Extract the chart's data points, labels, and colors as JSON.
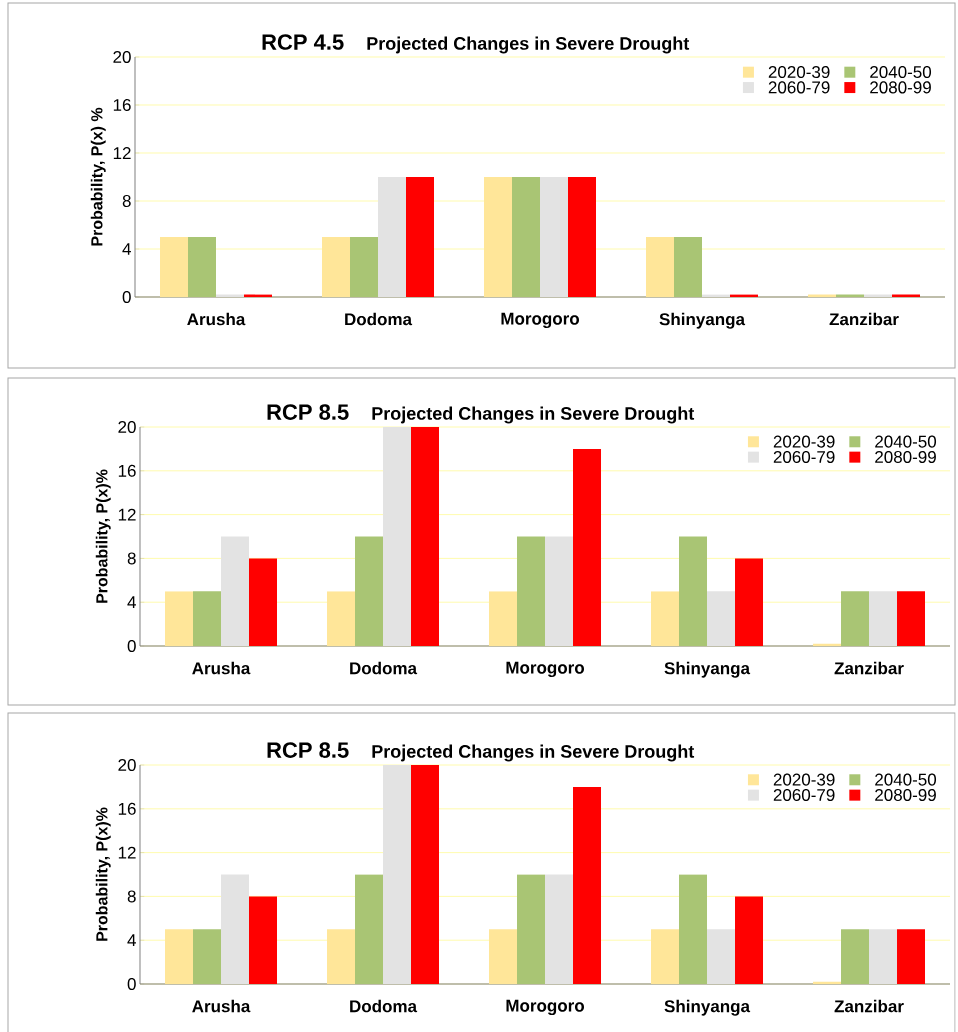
{
  "chart_data": [
    {
      "type": "bar",
      "title": "RCP 4.5",
      "subtitle": "Projected Changes in Severe Drought",
      "ylabel": "Probability, P(x) %",
      "categories": [
        "Arusha",
        "Dodoma",
        "Morogoro",
        "Shinyanga",
        "Zanzibar"
      ],
      "series": [
        {
          "name": "2020-39",
          "color": "#ffe699",
          "values": [
            5,
            5,
            10,
            5,
            0.2
          ]
        },
        {
          "name": "2040-50",
          "color": "#a9c574",
          "values": [
            5,
            5,
            10,
            5,
            0.2
          ]
        },
        {
          "name": "2060-79",
          "color": "#e3e3e3",
          "values": [
            0.2,
            10,
            10,
            0.2,
            0.2
          ]
        },
        {
          "name": "2080-99",
          "color": "#ff0000",
          "values": [
            0.2,
            10,
            10,
            0.2,
            0.2
          ]
        }
      ],
      "ylim": [
        0,
        20
      ],
      "yticks": [
        0,
        4,
        8,
        12,
        16,
        20
      ],
      "grid": "y",
      "legend": "top right"
    },
    {
      "type": "bar",
      "title": "RCP 8.5",
      "subtitle": "Projected Changes in Severe Drought",
      "ylabel": "Probability, P(x)%",
      "categories": [
        "Arusha",
        "Dodoma",
        "Morogoro",
        "Shinyanga",
        "Zanzibar"
      ],
      "series": [
        {
          "name": "2020-39",
          "color": "#ffe699",
          "values": [
            5,
            5,
            5,
            5,
            0.2
          ]
        },
        {
          "name": "2040-50",
          "color": "#a9c574",
          "values": [
            5,
            10,
            10,
            10,
            5
          ]
        },
        {
          "name": "2060-79",
          "color": "#e3e3e3",
          "values": [
            10,
            20,
            10,
            5,
            5
          ]
        },
        {
          "name": "2080-99",
          "color": "#ff0000",
          "values": [
            8,
            20,
            18,
            8,
            5
          ]
        }
      ],
      "ylim": [
        0,
        20
      ],
      "yticks": [
        0,
        4,
        8,
        12,
        16,
        20
      ],
      "grid": "y",
      "legend": "top right"
    },
    {
      "type": "bar",
      "title": "RCP 8.5",
      "subtitle": "Projected Changes in Severe Drought",
      "ylabel": "Probability, P(x)%",
      "categories": [
        "Arusha",
        "Dodoma",
        "Morogoro",
        "Shinyanga",
        "Zanzibar"
      ],
      "series": [
        {
          "name": "2020-39",
          "color": "#ffe699",
          "values": [
            5,
            5,
            5,
            5,
            0.2
          ]
        },
        {
          "name": "2040-50",
          "color": "#a9c574",
          "values": [
            5,
            10,
            10,
            10,
            5
          ]
        },
        {
          "name": "2060-79",
          "color": "#e3e3e3",
          "values": [
            10,
            20,
            10,
            5,
            5
          ]
        },
        {
          "name": "2080-99",
          "color": "#ff0000",
          "values": [
            8,
            20,
            18,
            8,
            5
          ]
        }
      ],
      "ylim": [
        0,
        20
      ],
      "yticks": [
        0,
        4,
        8,
        12,
        16,
        20
      ],
      "grid": "y",
      "legend": "top right"
    }
  ]
}
